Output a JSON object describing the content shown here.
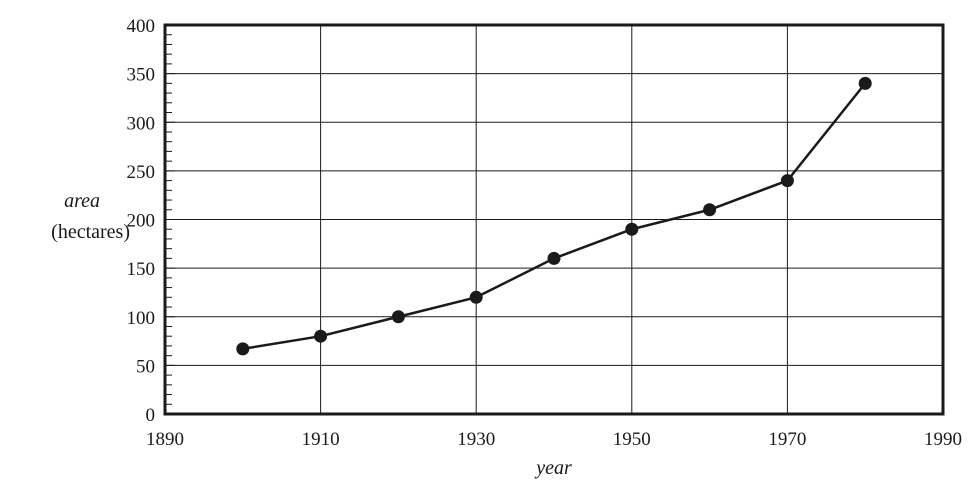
{
  "chart_data": {
    "type": "line",
    "title": "",
    "xlabel": "year",
    "ylabel": "area",
    "ylabel_unit": "(hectares)",
    "xlim": [
      1890,
      1990
    ],
    "ylim": [
      0,
      400
    ],
    "x_ticks": [
      1890,
      1910,
      1930,
      1950,
      1970,
      1990
    ],
    "y_ticks": [
      0,
      50,
      100,
      150,
      200,
      250,
      300,
      350,
      400
    ],
    "x_gridlines": [
      1890,
      1910,
      1930,
      1950,
      1970,
      1990
    ],
    "y_gridlines": [
      0,
      50,
      100,
      150,
      200,
      250,
      300,
      350,
      400
    ],
    "y_minor_step": 10,
    "grid": true,
    "series": [
      {
        "x": [
          1900,
          1910,
          1920,
          1930,
          1940,
          1950,
          1960,
          1970,
          1980
        ],
        "values": [
          67,
          80,
          100,
          120,
          160,
          190,
          210,
          240,
          340
        ]
      }
    ],
    "colors": {
      "line": "#1a1a1a",
      "grid": "#1a1a1a",
      "background": "#ffffff"
    }
  }
}
